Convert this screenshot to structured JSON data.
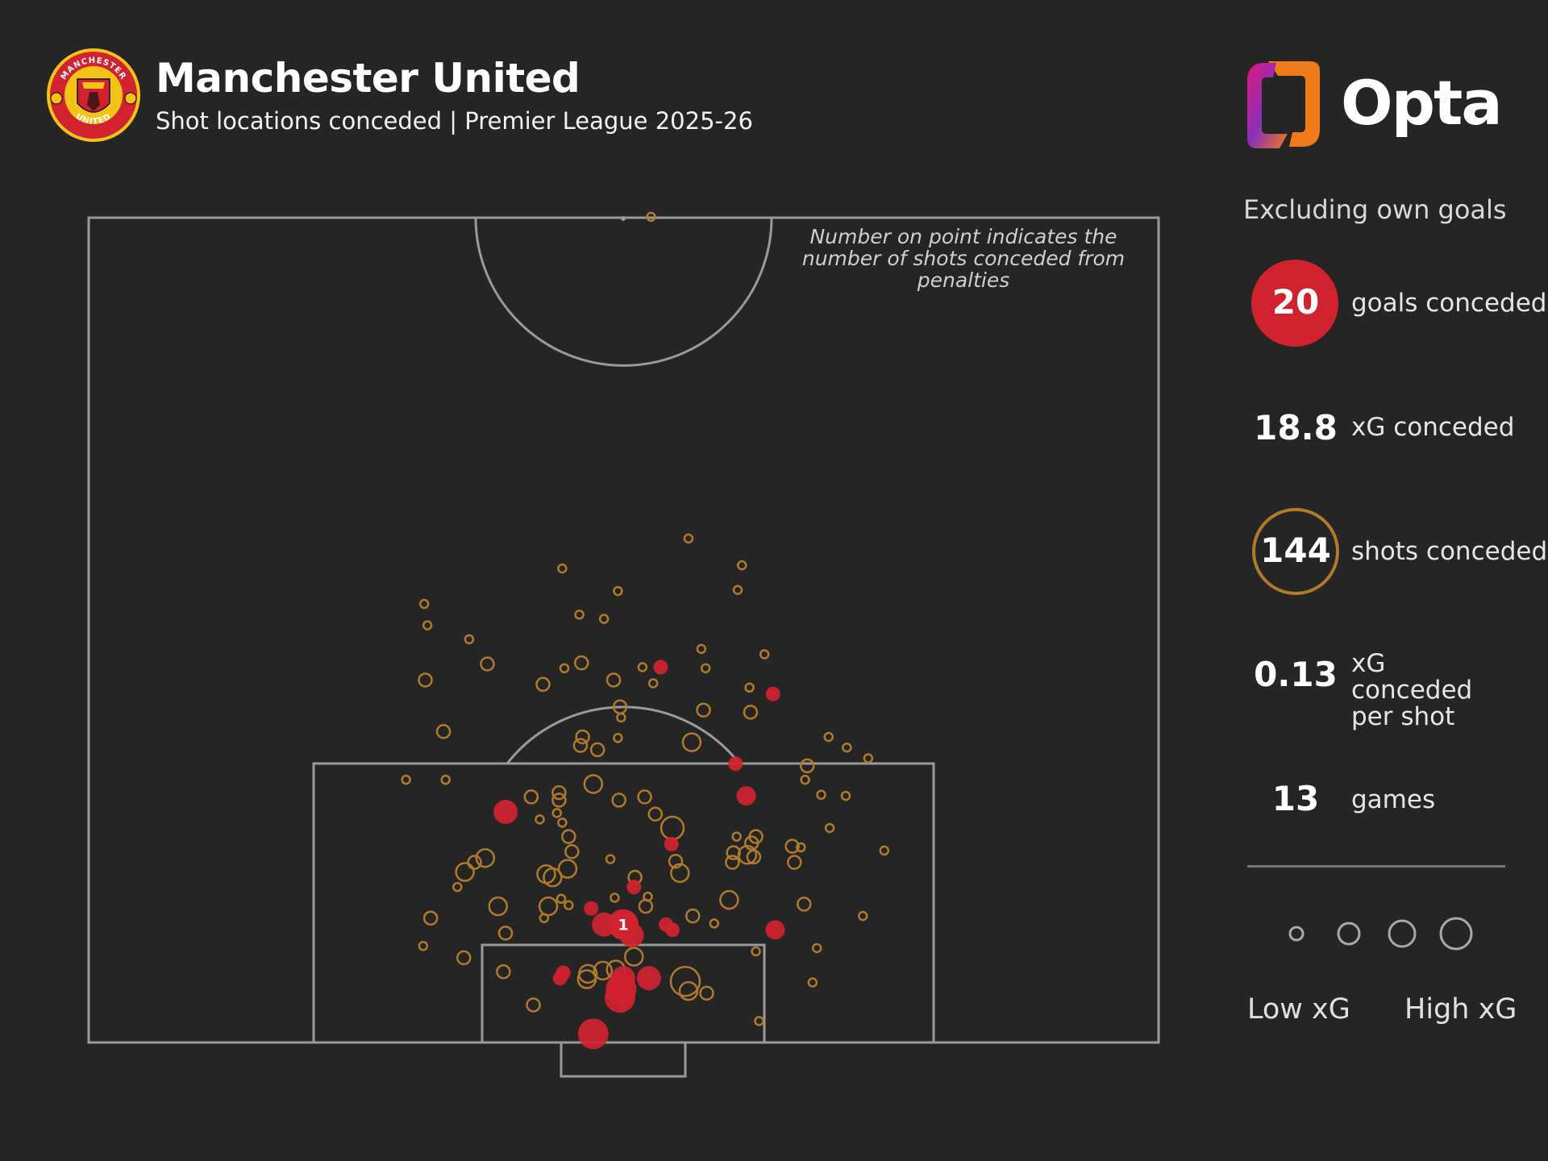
{
  "header": {
    "title": "Manchester United",
    "subtitle": "Shot locations conceded | Premier League 2025-26",
    "crest_text_top": "MANCHESTER",
    "crest_text_bottom": "UNITED",
    "brand": "Opta"
  },
  "colors": {
    "background": "#252525",
    "pitch_lines": "#9a9a9a",
    "goal": "#d1222f",
    "shot": "#b07a2a"
  },
  "note": "Number on point indicates the number of shots conceded from penalties",
  "sidebar": {
    "subtitle": "Excluding own goals",
    "stats": [
      {
        "value": "20",
        "label": "goals conceded"
      },
      {
        "value": "18.8",
        "label": "xG conceded"
      },
      {
        "value": "144",
        "label": "shots conceded"
      },
      {
        "value": "0.13",
        "label": "xG conceded per shot"
      },
      {
        "value": "13",
        "label": "games"
      }
    ],
    "legend": {
      "low": "Low xG",
      "high": "High xG"
    }
  },
  "chart_data": {
    "type": "scatter",
    "title": "Manchester United",
    "subtitle": "Shot locations conceded | Premier League 2025-26",
    "axes": {
      "x_range": [
        -50,
        50
      ],
      "y_range_from_goal_line": [
        0,
        77
      ]
    },
    "legend": [
      "Low xG",
      "High xG"
    ],
    "annotations": [
      "Number on point indicates the number of shots conceded from penalties"
    ],
    "penalty_goals": [
      {
        "x": 0,
        "y": 11,
        "label": "1"
      }
    ],
    "goals": [
      {
        "x": 3.5,
        "y": 35,
        "size": 2
      },
      {
        "x": 14.0,
        "y": 32.5,
        "size": 2
      },
      {
        "x": 10.5,
        "y": 26,
        "size": 2
      },
      {
        "x": 11.5,
        "y": 23,
        "size": 3
      },
      {
        "x": -11.0,
        "y": 21.5,
        "size": 4
      },
      {
        "x": 4.5,
        "y": 18.5,
        "size": 2
      },
      {
        "x": 1.0,
        "y": 14.5,
        "size": 2
      },
      {
        "x": -3.0,
        "y": 12.5,
        "size": 2
      },
      {
        "x": 4.0,
        "y": 11.0,
        "size": 2
      },
      {
        "x": -1.8,
        "y": 11.0,
        "size": 4
      },
      {
        "x": 0.8,
        "y": 10.0,
        "size": 4
      },
      {
        "x": 4.6,
        "y": 10.5,
        "size": 2
      },
      {
        "x": 14.2,
        "y": 10.5,
        "size": 3
      },
      {
        "x": -5.6,
        "y": 6.5,
        "size": 2
      },
      {
        "x": 0.0,
        "y": 6.0,
        "size": 4
      },
      {
        "x": 2.4,
        "y": 6.0,
        "size": 4
      },
      {
        "x": -0.2,
        "y": 5.0,
        "size": 5
      },
      {
        "x": -5.9,
        "y": 6.0,
        "size": 2
      },
      {
        "x": -0.3,
        "y": 4.2,
        "size": 5
      },
      {
        "x": -2.8,
        "y": 0.8,
        "size": 5
      }
    ],
    "shots": [
      {
        "x": 6.1,
        "y": 47.0,
        "size": 1
      },
      {
        "x": -5.7,
        "y": 44.2,
        "size": 1
      },
      {
        "x": 11.1,
        "y": 44.5,
        "size": 1
      },
      {
        "x": -0.5,
        "y": 42.1,
        "size": 1
      },
      {
        "x": 10.7,
        "y": 42.2,
        "size": 1
      },
      {
        "x": -18.6,
        "y": 40.9,
        "size": 1
      },
      {
        "x": -4.1,
        "y": 39.9,
        "size": 1
      },
      {
        "x": -1.8,
        "y": 39.5,
        "size": 1
      },
      {
        "x": -18.3,
        "y": 38.9,
        "size": 1
      },
      {
        "x": -14.4,
        "y": 37.6,
        "size": 1
      },
      {
        "x": 7.3,
        "y": 36.7,
        "size": 1
      },
      {
        "x": 13.2,
        "y": 36.2,
        "size": 1
      },
      {
        "x": -12.7,
        "y": 35.3,
        "size": 2
      },
      {
        "x": -3.9,
        "y": 35.4,
        "size": 2
      },
      {
        "x": 1.8,
        "y": 35.0,
        "size": 1
      },
      {
        "x": 7.7,
        "y": 34.9,
        "size": 1
      },
      {
        "x": -5.5,
        "y": 34.9,
        "size": 1
      },
      {
        "x": -18.5,
        "y": 33.8,
        "size": 2
      },
      {
        "x": -0.9,
        "y": 33.8,
        "size": 2
      },
      {
        "x": -7.5,
        "y": 33.4,
        "size": 2
      },
      {
        "x": 2.8,
        "y": 33.5,
        "size": 1
      },
      {
        "x": 11.8,
        "y": 33.1,
        "size": 1
      },
      {
        "x": -0.3,
        "y": 31.3,
        "size": 2
      },
      {
        "x": 7.5,
        "y": 31.0,
        "size": 2
      },
      {
        "x": 11.9,
        "y": 30.8,
        "size": 2
      },
      {
        "x": -0.2,
        "y": 30.3,
        "size": 1
      },
      {
        "x": -16.8,
        "y": 29.0,
        "size": 2
      },
      {
        "x": -3.8,
        "y": 28.5,
        "size": 2
      },
      {
        "x": -0.5,
        "y": 28.4,
        "size": 1
      },
      {
        "x": 19.2,
        "y": 28.5,
        "size": 1
      },
      {
        "x": 6.4,
        "y": 28.0,
        "size": 3
      },
      {
        "x": -4.0,
        "y": 27.7,
        "size": 2
      },
      {
        "x": -2.4,
        "y": 27.3,
        "size": 2
      },
      {
        "x": 20.9,
        "y": 27.5,
        "size": 1
      },
      {
        "x": 22.9,
        "y": 26.5,
        "size": 1
      },
      {
        "x": 17.2,
        "y": 25.8,
        "size": 2
      },
      {
        "x": -20.3,
        "y": 24.5,
        "size": 1
      },
      {
        "x": -16.6,
        "y": 24.5,
        "size": 1
      },
      {
        "x": -2.8,
        "y": 24.1,
        "size": 3
      },
      {
        "x": 17.0,
        "y": 24.5,
        "size": 1
      },
      {
        "x": 20.8,
        "y": 23.0,
        "size": 1
      },
      {
        "x": 18.5,
        "y": 23.1,
        "size": 1
      },
      {
        "x": -8.6,
        "y": 22.9,
        "size": 2
      },
      {
        "x": -6.0,
        "y": 23.3,
        "size": 2
      },
      {
        "x": -6.0,
        "y": 22.6,
        "size": 2
      },
      {
        "x": 2.0,
        "y": 22.9,
        "size": 2
      },
      {
        "x": -0.4,
        "y": 22.6,
        "size": 2
      },
      {
        "x": -6.2,
        "y": 21.4,
        "size": 1
      },
      {
        "x": 3.0,
        "y": 21.3,
        "size": 2
      },
      {
        "x": -7.8,
        "y": 20.8,
        "size": 1
      },
      {
        "x": -5.7,
        "y": 20.5,
        "size": 1
      },
      {
        "x": 4.6,
        "y": 20.0,
        "size": 4
      },
      {
        "x": 19.3,
        "y": 20.0,
        "size": 1
      },
      {
        "x": -5.1,
        "y": 19.2,
        "size": 2
      },
      {
        "x": 10.6,
        "y": 19.2,
        "size": 1
      },
      {
        "x": 12.4,
        "y": 19.2,
        "size": 2
      },
      {
        "x": 12.0,
        "y": 18.6,
        "size": 2
      },
      {
        "x": 15.8,
        "y": 18.3,
        "size": 2
      },
      {
        "x": 16.6,
        "y": 18.2,
        "size": 1
      },
      {
        "x": 24.4,
        "y": 17.9,
        "size": 1
      },
      {
        "x": -4.8,
        "y": 17.8,
        "size": 2
      },
      {
        "x": 10.3,
        "y": 17.7,
        "size": 2
      },
      {
        "x": 11.6,
        "y": 17.5,
        "size": 3
      },
      {
        "x": 12.2,
        "y": 17.3,
        "size": 2
      },
      {
        "x": -13.9,
        "y": 16.8,
        "size": 2
      },
      {
        "x": -12.9,
        "y": 17.2,
        "size": 3
      },
      {
        "x": -1.2,
        "y": 17.1,
        "size": 1
      },
      {
        "x": 4.9,
        "y": 16.9,
        "size": 2
      },
      {
        "x": 10.2,
        "y": 16.8,
        "size": 2
      },
      {
        "x": 16.0,
        "y": 16.8,
        "size": 2
      },
      {
        "x": -14.8,
        "y": 15.9,
        "size": 3
      },
      {
        "x": -5.2,
        "y": 16.2,
        "size": 3
      },
      {
        "x": -7.2,
        "y": 15.7,
        "size": 3
      },
      {
        "x": -6.6,
        "y": 15.4,
        "size": 3
      },
      {
        "x": 5.3,
        "y": 15.8,
        "size": 3
      },
      {
        "x": 1.1,
        "y": 15.4,
        "size": 2
      },
      {
        "x": -15.5,
        "y": 14.5,
        "size": 1
      },
      {
        "x": -5.8,
        "y": 13.4,
        "size": 1
      },
      {
        "x": -0.8,
        "y": 13.5,
        "size": 1
      },
      {
        "x": 2.3,
        "y": 13.6,
        "size": 1
      },
      {
        "x": 9.9,
        "y": 13.3,
        "size": 3
      },
      {
        "x": -11.7,
        "y": 12.7,
        "size": 3
      },
      {
        "x": -7.0,
        "y": 12.7,
        "size": 3
      },
      {
        "x": -5.1,
        "y": 12.8,
        "size": 1
      },
      {
        "x": 16.9,
        "y": 12.9,
        "size": 2
      },
      {
        "x": 2.1,
        "y": 12.7,
        "size": 2
      },
      {
        "x": -18.0,
        "y": 11.6,
        "size": 2
      },
      {
        "x": -7.4,
        "y": 11.6,
        "size": 1
      },
      {
        "x": 6.5,
        "y": 11.8,
        "size": 2
      },
      {
        "x": 22.4,
        "y": 11.8,
        "size": 1
      },
      {
        "x": 8.5,
        "y": 11.1,
        "size": 1
      },
      {
        "x": -11.0,
        "y": 10.2,
        "size": 2
      },
      {
        "x": 18.1,
        "y": 8.8,
        "size": 1
      },
      {
        "x": -18.7,
        "y": 9.0,
        "size": 1
      },
      {
        "x": 12.4,
        "y": 8.5,
        "size": 1
      },
      {
        "x": -14.9,
        "y": 7.9,
        "size": 2
      },
      {
        "x": 1.0,
        "y": 8.0,
        "size": 3
      },
      {
        "x": -11.2,
        "y": 6.6,
        "size": 2
      },
      {
        "x": -0.7,
        "y": 6.8,
        "size": 3
      },
      {
        "x": -1.9,
        "y": 6.7,
        "size": 3
      },
      {
        "x": -3.4,
        "y": 5.9,
        "size": 3
      },
      {
        "x": -3.3,
        "y": 6.4,
        "size": 3
      },
      {
        "x": 5.8,
        "y": 5.7,
        "size": 5
      },
      {
        "x": 6.1,
        "y": 4.8,
        "size": 3
      },
      {
        "x": 7.8,
        "y": 4.6,
        "size": 2
      },
      {
        "x": 17.7,
        "y": 5.6,
        "size": 1
      },
      {
        "x": -8.4,
        "y": 3.5,
        "size": 2
      },
      {
        "x": 12.7,
        "y": 2.0,
        "size": 1
      },
      {
        "x": 2.6,
        "y": 77.0,
        "size": 1
      }
    ]
  }
}
